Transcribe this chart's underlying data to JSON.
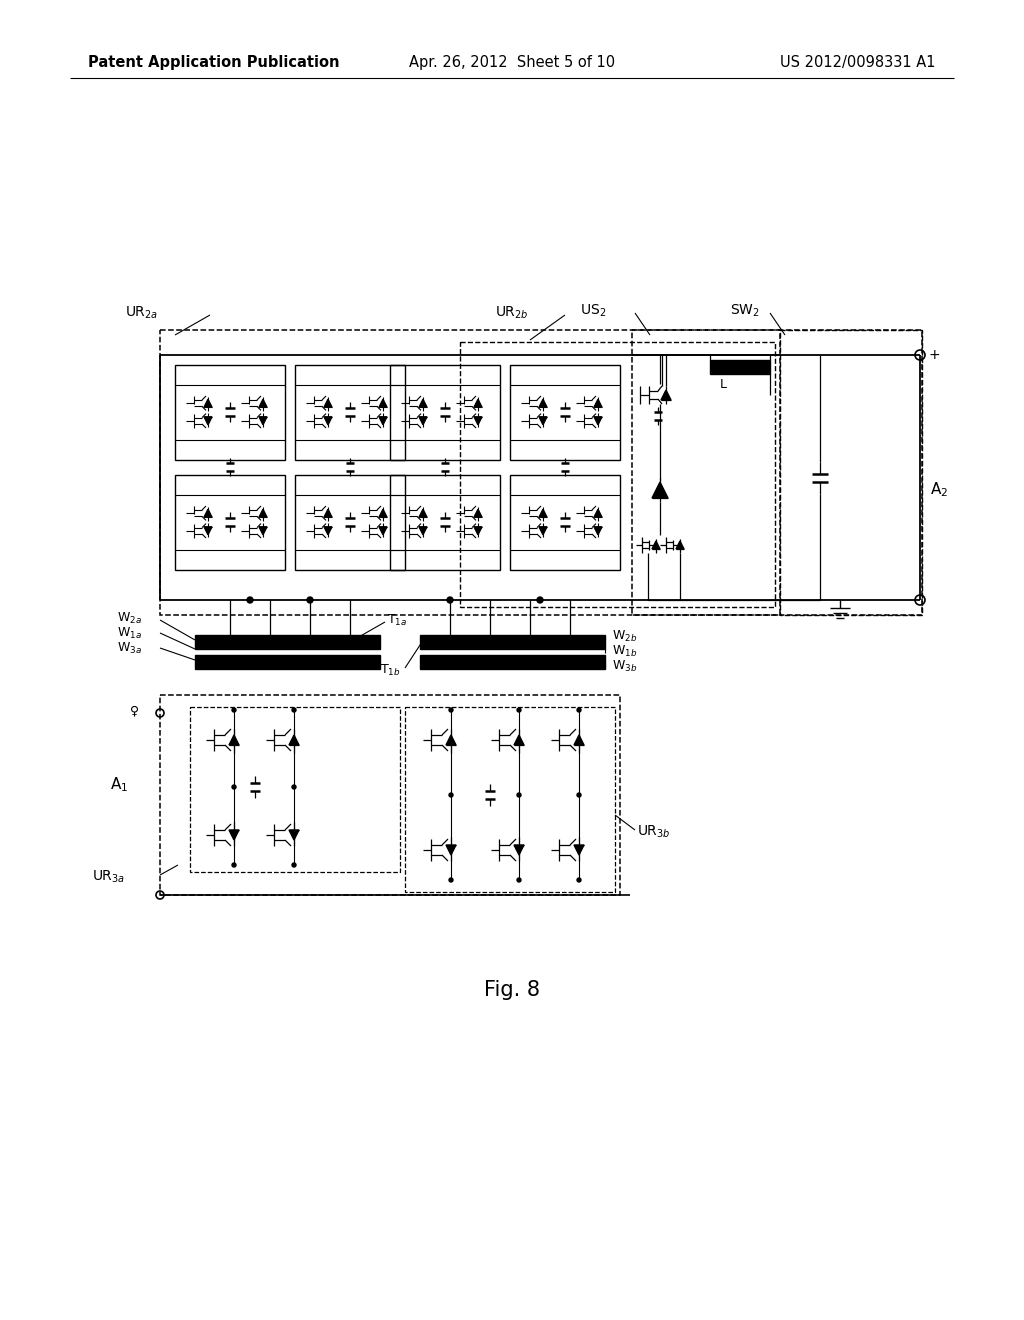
{
  "background_color": "#ffffff",
  "header_left": "Patent Application Publication",
  "header_center": "Apr. 26, 2012  Sheet 5 of 10",
  "header_right": "US 2012/0098331 A1",
  "figure_label": "Fig. 8",
  "header_fontsize": 10.5,
  "fig_label_fontsize": 15
}
